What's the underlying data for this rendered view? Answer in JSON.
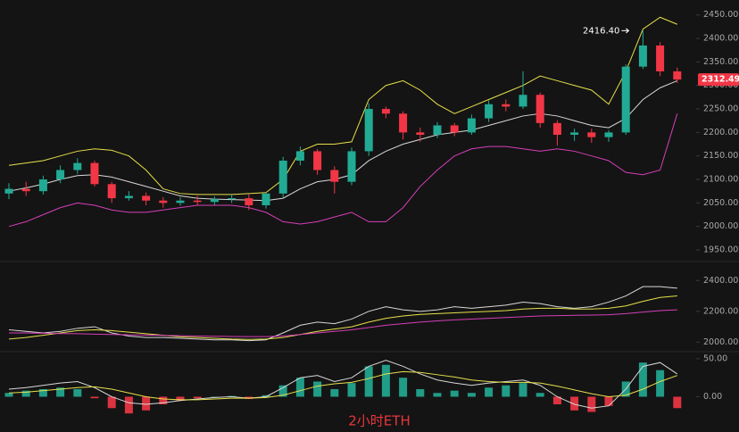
{
  "watermark": "2小时ETH",
  "chart_data": [
    {
      "type": "candlestick",
      "open": [
        2070,
        2080,
        2075,
        2100,
        2120,
        2135,
        2090,
        2060,
        2065,
        2055,
        2050,
        2055,
        2052,
        2058,
        2060,
        2045,
        2070,
        2140,
        2160,
        2120,
        2095,
        2160,
        2250,
        2240,
        2200,
        2195,
        2215,
        2200,
        2230,
        2260,
        2255,
        2280,
        2220,
        2195,
        2200,
        2190,
        2200,
        2340,
        2385,
        2330
      ],
      "high": [
        2092,
        2095,
        2108,
        2130,
        2145,
        2140,
        2095,
        2075,
        2072,
        2062,
        2062,
        2065,
        2064,
        2068,
        2068,
        2072,
        2148,
        2170,
        2165,
        2128,
        2168,
        2262,
        2255,
        2245,
        2210,
        2222,
        2220,
        2238,
        2268,
        2270,
        2330,
        2285,
        2226,
        2208,
        2208,
        2205,
        2345,
        2416.4,
        2392,
        2338
      ],
      "low": [
        2058,
        2065,
        2068,
        2092,
        2112,
        2085,
        2050,
        2055,
        2045,
        2040,
        2044,
        2045,
        2046,
        2050,
        2035,
        2038,
        2062,
        2130,
        2110,
        2070,
        2088,
        2150,
        2230,
        2185,
        2180,
        2188,
        2192,
        2195,
        2222,
        2245,
        2250,
        2210,
        2172,
        2182,
        2178,
        2180,
        2195,
        2335,
        2320,
        2305
      ],
      "close": [
        2080,
        2075,
        2100,
        2120,
        2135,
        2090,
        2060,
        2065,
        2055,
        2050,
        2055,
        2052,
        2058,
        2060,
        2045,
        2070,
        2140,
        2160,
        2120,
        2095,
        2160,
        2250,
        2240,
        2200,
        2195,
        2215,
        2200,
        2230,
        2260,
        2255,
        2280,
        2220,
        2195,
        2200,
        2190,
        2200,
        2340,
        2385,
        2330,
        2312.49
      ],
      "up_color": "#22ab94",
      "down_color": "#f23645",
      "series": [
        {
          "color": "#e6e04a",
          "values": [
            2130,
            2135,
            2140,
            2150,
            2160,
            2165,
            2162,
            2150,
            2120,
            2080,
            2070,
            2068,
            2068,
            2068,
            2070,
            2072,
            2100,
            2160,
            2175,
            2175,
            2180,
            2270,
            2300,
            2310,
            2290,
            2260,
            2240,
            2255,
            2270,
            2285,
            2300,
            2320,
            2310,
            2300,
            2290,
            2260,
            2330,
            2420,
            2445,
            2430
          ]
        },
        {
          "color": "#d8d8d8",
          "values": [
            2075,
            2082,
            2090,
            2100,
            2108,
            2110,
            2105,
            2095,
            2085,
            2075,
            2065,
            2060,
            2058,
            2057,
            2056,
            2055,
            2060,
            2080,
            2095,
            2100,
            2110,
            2140,
            2160,
            2175,
            2185,
            2195,
            2200,
            2205,
            2215,
            2225,
            2235,
            2240,
            2235,
            2225,
            2215,
            2210,
            2230,
            2270,
            2295,
            2310
          ]
        },
        {
          "color": "#d63fb8",
          "values": [
            2000,
            2010,
            2025,
            2040,
            2050,
            2045,
            2035,
            2030,
            2030,
            2035,
            2040,
            2045,
            2045,
            2045,
            2040,
            2030,
            2010,
            2005,
            2010,
            2020,
            2030,
            2010,
            2010,
            2040,
            2085,
            2120,
            2150,
            2165,
            2170,
            2170,
            2165,
            2160,
            2165,
            2160,
            2150,
            2140,
            2115,
            2110,
            2120,
            2240
          ]
        }
      ],
      "ylim": [
        1931,
        2478
      ],
      "yticks": [
        {
          "value": 1950,
          "label": "1950.00"
        },
        {
          "value": 2000,
          "label": "2000.00"
        },
        {
          "value": 2050,
          "label": "2050.00"
        },
        {
          "value": 2100,
          "label": "2100.00"
        },
        {
          "value": 2150,
          "label": "2150.00"
        },
        {
          "value": 2200,
          "label": "2200.00"
        },
        {
          "value": 2250,
          "label": "2250.00"
        },
        {
          "value": 2300,
          "label": "2300.00"
        },
        {
          "value": 2350,
          "label": "2350.00"
        },
        {
          "value": 2400,
          "label": "2400.00"
        },
        {
          "value": 2450,
          "label": "2450.00"
        }
      ],
      "last_price": 2312.49,
      "high_label": {
        "value": 2416.4,
        "label": "2416.40"
      }
    },
    {
      "type": "line",
      "series": [
        {
          "color": "#d8d8d8",
          "values": [
            2080,
            2070,
            2060,
            2070,
            2090,
            2100,
            2060,
            2040,
            2030,
            2030,
            2025,
            2020,
            2015,
            2015,
            2010,
            2015,
            2060,
            2110,
            2130,
            2120,
            2150,
            2200,
            2230,
            2210,
            2200,
            2210,
            2230,
            2220,
            2230,
            2240,
            2260,
            2250,
            2230,
            2220,
            2230,
            2260,
            2300,
            2360,
            2360,
            2350
          ]
        },
        {
          "color": "#e6e04a",
          "values": [
            2020,
            2030,
            2045,
            2060,
            2075,
            2080,
            2075,
            2065,
            2055,
            2045,
            2035,
            2030,
            2025,
            2020,
            2018,
            2020,
            2030,
            2050,
            2070,
            2085,
            2100,
            2130,
            2155,
            2170,
            2180,
            2185,
            2190,
            2195,
            2200,
            2205,
            2215,
            2220,
            2220,
            2215,
            2215,
            2220,
            2235,
            2265,
            2290,
            2300
          ]
        },
        {
          "color": "#d63fb8",
          "values": [
            2060,
            2060,
            2058,
            2056,
            2055,
            2052,
            2050,
            2048,
            2046,
            2044,
            2042,
            2040,
            2038,
            2037,
            2036,
            2036,
            2040,
            2050,
            2060,
            2070,
            2080,
            2095,
            2110,
            2120,
            2130,
            2138,
            2145,
            2150,
            2155,
            2160,
            2165,
            2170,
            2172,
            2174,
            2176,
            2178,
            2185,
            2195,
            2205,
            2210
          ]
        }
      ],
      "ylim": [
        1950,
        2500
      ],
      "yticks": [
        {
          "value": 2000,
          "label": "2000.00"
        },
        {
          "value": 2200,
          "label": "2200.00"
        },
        {
          "value": 2400,
          "label": "2400.00"
        }
      ]
    },
    {
      "type": "macd",
      "values": [
        5,
        8,
        10,
        12,
        10,
        -2,
        -15,
        -22,
        -18,
        -10,
        -5,
        -2,
        0,
        1,
        -3,
        2,
        15,
        25,
        20,
        10,
        18,
        40,
        42,
        25,
        10,
        5,
        8,
        5,
        12,
        15,
        18,
        5,
        -10,
        -18,
        -20,
        -12,
        20,
        45,
        35,
        -15
      ],
      "up_color": "#22ab94",
      "down_color": "#f23645",
      "series": [
        {
          "color": "#d8d8d8",
          "values": [
            10,
            12,
            15,
            18,
            20,
            12,
            0,
            -8,
            -10,
            -8,
            -5,
            -3,
            -1,
            0,
            -2,
            0,
            12,
            25,
            28,
            20,
            25,
            40,
            48,
            40,
            30,
            22,
            18,
            15,
            18,
            20,
            22,
            15,
            0,
            -10,
            -15,
            -12,
            10,
            40,
            45,
            30
          ]
        },
        {
          "color": "#e6e04a",
          "values": [
            5,
            6,
            8,
            10,
            12,
            13,
            10,
            5,
            0,
            -3,
            -4,
            -4,
            -3,
            -2,
            -2,
            -1,
            2,
            8,
            14,
            17,
            19,
            24,
            30,
            33,
            32,
            29,
            26,
            22,
            20,
            19,
            19,
            18,
            14,
            9,
            4,
            0,
            2,
            10,
            20,
            28
          ]
        }
      ],
      "ylim": [
        -30,
        57
      ],
      "yticks": [
        {
          "value": 50,
          "label": "50.00"
        },
        {
          "value": 0,
          "label": "0.00"
        }
      ]
    }
  ]
}
